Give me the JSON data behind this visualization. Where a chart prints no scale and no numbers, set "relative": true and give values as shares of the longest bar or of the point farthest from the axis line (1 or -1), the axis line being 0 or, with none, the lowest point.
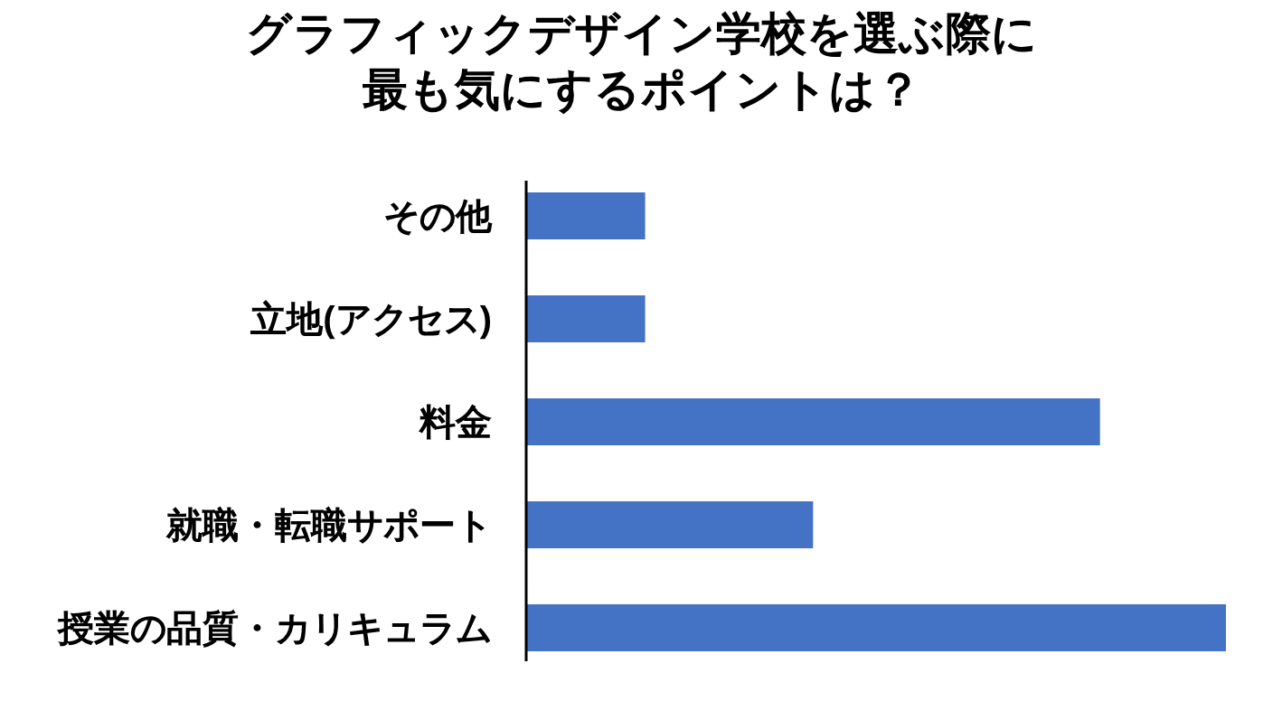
{
  "chart_data": {
    "type": "bar",
    "orientation": "horizontal",
    "relative": true,
    "title": "グラフィックデザイン学校を選ぶ際に最も気にするポイントは？",
    "categories": [
      "その他",
      "立地(アクセス)",
      "料金",
      "就職・転職サポート",
      "授業の品質・カリキュラム"
    ],
    "values": [
      0.17,
      0.17,
      0.82,
      0.41,
      1
    ],
    "color": "#4472c4"
  }
}
